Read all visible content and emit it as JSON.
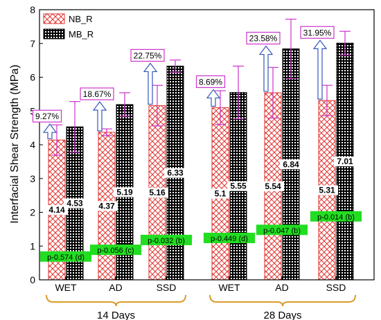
{
  "chart_data": {
    "type": "bar",
    "ylabel": "Interfacial Shear Strength (MPa)",
    "ylim": [
      0,
      8
    ],
    "yticks": [
      "0",
      "1",
      "2",
      "3",
      "4",
      "5",
      "6",
      "7",
      "8"
    ],
    "categories": [
      "WET",
      "AD",
      "SSD",
      "WET",
      "AD",
      "SSD"
    ],
    "groups": [
      {
        "label": "14 Days",
        "categories": [
          0,
          1,
          2
        ]
      },
      {
        "label": "28 Days",
        "categories": [
          3,
          4,
          5
        ]
      }
    ],
    "legend_position": "top-left",
    "series": [
      {
        "name": "NB_R",
        "values": [
          4.14,
          4.37,
          5.16,
          5.1,
          5.54,
          5.31
        ],
        "value_labels": [
          "4.14",
          "4.37",
          "5.16",
          "5.1",
          "5.54",
          "5.31"
        ],
        "error": [
          0.45,
          0.1,
          0.6,
          0.5,
          0.75,
          0.45
        ],
        "color": "#e0322d",
        "pattern": "crosshatch"
      },
      {
        "name": "MB_R",
        "values": [
          4.53,
          5.19,
          6.33,
          5.55,
          6.84,
          7.01
        ],
        "value_labels": [
          "4.53",
          "5.19",
          "6.33",
          "5.55",
          "6.84",
          "7.01"
        ],
        "error": [
          0.75,
          0.35,
          0.18,
          0.78,
          0.88,
          0.35
        ],
        "color": "#000000",
        "pattern": "dots"
      }
    ],
    "annotations": {
      "percent_increase": [
        "9.27%",
        "18.67%",
        "22.75%",
        "8.69%",
        "23.58%",
        "31.95%"
      ],
      "p_values": [
        "p-0.574 (d)",
        "p-0.056 (c)",
        "p-0.032 (b)",
        "p-0.449 (d)",
        "p-0.047 (b)",
        "p-0.014 (b)"
      ],
      "p_value_y": [
        0.68,
        0.88,
        1.17,
        1.23,
        1.47,
        1.87
      ]
    },
    "colors": {
      "error_bar": "#cc33cc",
      "arrow": "#3355bb",
      "p_box": "#22dd22",
      "group_brace": "#d99a2b"
    }
  }
}
